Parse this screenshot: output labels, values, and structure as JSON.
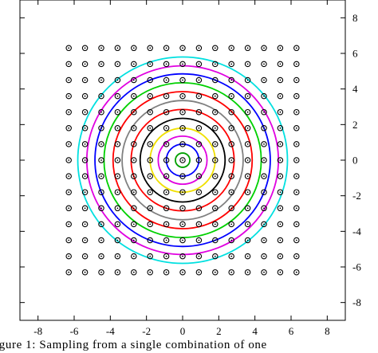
{
  "chart_data": {
    "type": "scatter",
    "title": "",
    "xlabel": "",
    "ylabel": "",
    "xlim": [
      -9,
      9
    ],
    "ylim": [
      -9,
      9
    ],
    "x_ticks": [
      -8,
      -6,
      -4,
      -2,
      0,
      2,
      4,
      6,
      8
    ],
    "y_ticks": [
      -8,
      -6,
      -4,
      -2,
      0,
      2,
      4,
      6,
      8
    ],
    "grid": false,
    "points": {
      "marker": "open-circle-dot",
      "x_values": [
        -6.3,
        -5.4,
        -4.5,
        -3.6,
        -2.7,
        -1.8,
        -0.9,
        0,
        0.9,
        1.8,
        2.7,
        3.6,
        4.5,
        5.4,
        6.3
      ],
      "y_values": [
        -6.3,
        -5.4,
        -4.5,
        -3.6,
        -2.7,
        -1.8,
        -0.9,
        0,
        0.9,
        1.8,
        2.7,
        3.6,
        4.5,
        5.4,
        6.3
      ]
    },
    "circles": [
      {
        "center": [
          0,
          0
        ],
        "radius": 0.4,
        "color": "#00a000"
      },
      {
        "center": [
          0,
          0
        ],
        "radius": 0.9,
        "color": "#0000ff"
      },
      {
        "center": [
          0,
          0
        ],
        "radius": 1.35,
        "color": "#e000e0"
      },
      {
        "center": [
          0,
          0
        ],
        "radius": 1.8,
        "color": "#f0e000"
      },
      {
        "center": [
          0,
          0
        ],
        "radius": 2.35,
        "color": "#000000"
      },
      {
        "center": [
          0,
          0
        ],
        "radius": 2.85,
        "color": "#ff0000"
      },
      {
        "center": [
          0,
          0
        ],
        "radius": 3.35,
        "color": "#808080"
      },
      {
        "center": [
          0,
          0
        ],
        "radius": 3.85,
        "color": "#ff0000"
      },
      {
        "center": [
          0,
          0
        ],
        "radius": 4.35,
        "color": "#00d000"
      },
      {
        "center": [
          0,
          0
        ],
        "radius": 4.85,
        "color": "#0000ff"
      },
      {
        "center": [
          0,
          0
        ],
        "radius": 5.3,
        "color": "#e000e0"
      },
      {
        "center": [
          0,
          0
        ],
        "radius": 5.8,
        "color": "#00e0e0"
      }
    ]
  },
  "caption": {
    "text": "igure 1:  Sampling from a single combination of one"
  }
}
